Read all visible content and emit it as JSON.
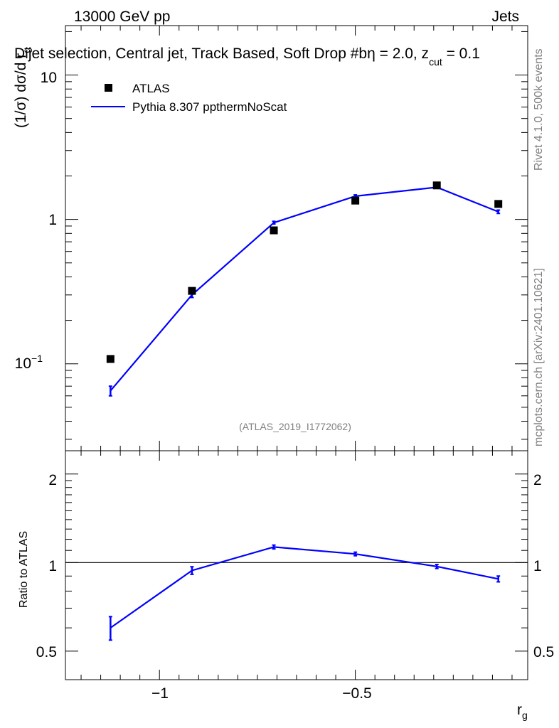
{
  "header": {
    "left": "13000 GeV pp",
    "right": "Jets"
  },
  "plot_title": "Dijet selection, Central jet, Track Based, Soft Drop #b",
  "plot_title_tail": "η = 2.0, z",
  "plot_title_sub": "cut",
  "plot_title_end": " = 0.1",
  "side_labels": {
    "rivet": "Rivet 4.1.0,  500k events",
    "mcplots": "mcplots.cern.ch [arXiv:2401.10621]"
  },
  "watermark": "(ATLAS_2019_I1772062)",
  "legend": {
    "data_label": "ATLAS",
    "mc_label": "Pythia 8.307 ppthermNoScat"
  },
  "axes": {
    "ylabel_main": "(1/σ) dσ/d r",
    "ylabel_main_sub": "g",
    "ylabel_ratio": "Ratio to ATLAS",
    "xlabel": "r",
    "xlabel_sub": "g",
    "xticks": [
      "−1",
      "−0.5"
    ],
    "yticks_main": [
      "10",
      "1"
    ],
    "ytick_exp_base": "10",
    "ytick_exp_power": "−1",
    "yticks_ratio": [
      "2",
      "1",
      "0.5"
    ]
  },
  "colors": {
    "mc": "#0000ff",
    "data": "#000000"
  },
  "chart_data": [
    {
      "type": "line",
      "panel": "main",
      "yscale": "log",
      "xlim": [
        -1.24,
        -0.06
      ],
      "ylim": [
        0.025,
        22
      ],
      "x": [
        -1.125,
        -0.917,
        -0.708,
        -0.5,
        -0.292,
        -0.135
      ],
      "series": [
        {
          "name": "ATLAS",
          "style": "markers",
          "values": [
            0.108,
            0.32,
            0.84,
            1.35,
            1.72,
            1.28
          ]
        },
        {
          "name": "Pythia 8.307 ppthermNoScat",
          "style": "line",
          "values": [
            0.065,
            0.3,
            0.95,
            1.45,
            1.67,
            1.13
          ],
          "errors": [
            0.005,
            0.012,
            0.02,
            0.03,
            0.03,
            0.03
          ]
        }
      ]
    },
    {
      "type": "line",
      "panel": "ratio",
      "yscale": "log",
      "xlim": [
        -1.24,
        -0.06
      ],
      "ylim": [
        0.4,
        2.4
      ],
      "x": [
        -1.125,
        -0.917,
        -0.708,
        -0.5,
        -0.292,
        -0.135
      ],
      "reference": 1,
      "series": [
        {
          "name": "Pythia 8.307 ppthermNoScat / ATLAS",
          "values": [
            0.6,
            0.94,
            1.13,
            1.07,
            0.97,
            0.88
          ],
          "errors": [
            0.055,
            0.028,
            0.017,
            0.015,
            0.015,
            0.02
          ]
        }
      ]
    }
  ]
}
